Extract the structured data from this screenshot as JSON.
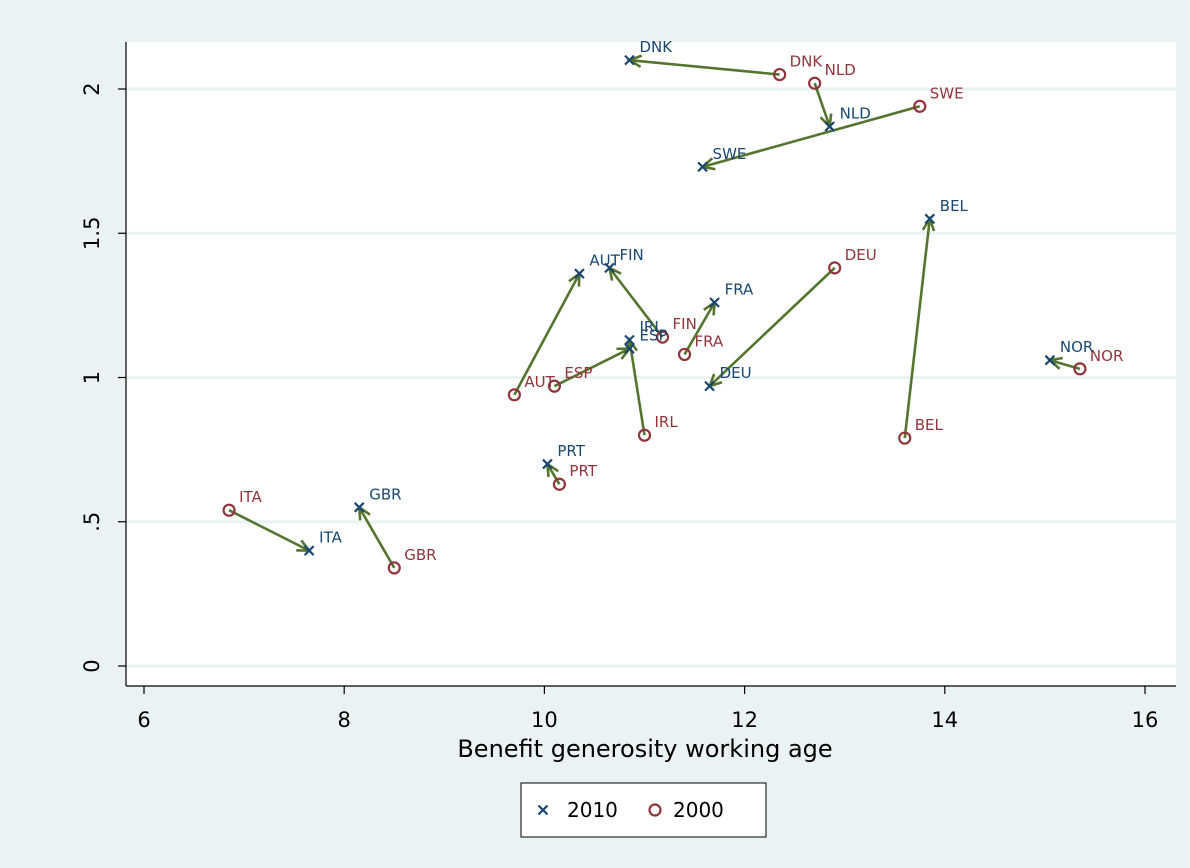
{
  "chart_data": {
    "type": "scatter",
    "title": "",
    "xlabel": "Benefit generosity working age",
    "ylabel": "",
    "xlim": [
      6,
      16
    ],
    "ylim": [
      0,
      2.15
    ],
    "xticks": [
      6,
      8,
      10,
      12,
      14,
      16
    ],
    "xtick_labels": [
      "6",
      "8",
      "10",
      "12",
      "14",
      "16"
    ],
    "yticks": [
      0,
      0.5,
      1,
      1.5,
      2
    ],
    "ytick_labels": [
      "0",
      ".5",
      "1",
      "1.5",
      "2"
    ],
    "grid": "horizontal",
    "legend_position": "bottom",
    "colors": {
      "s2010": "#1a476f",
      "s2000": "#90353b",
      "arrow": "#55752f",
      "grid": "#eaf2f3",
      "background": "#eaf2f3",
      "plot_background": "#ffffff"
    },
    "series": [
      {
        "name": "2010",
        "marker": "x",
        "points": [
          {
            "label": "DNK",
            "x": 10.85,
            "y": 2.1
          },
          {
            "label": "NLD",
            "x": 12.85,
            "y": 1.87
          },
          {
            "label": "SWE",
            "x": 11.58,
            "y": 1.73
          },
          {
            "label": "BEL",
            "x": 13.85,
            "y": 1.55
          },
          {
            "label": "AUT",
            "x": 10.35,
            "y": 1.36
          },
          {
            "label": "FIN",
            "x": 10.65,
            "y": 1.38
          },
          {
            "label": "FRA",
            "x": 11.7,
            "y": 1.26
          },
          {
            "label": "IRL",
            "x": 10.85,
            "y": 1.13
          },
          {
            "label": "ESP",
            "x": 10.85,
            "y": 1.1
          },
          {
            "label": "DEU",
            "x": 11.65,
            "y": 0.97
          },
          {
            "label": "NOR",
            "x": 15.05,
            "y": 1.06
          },
          {
            "label": "PRT",
            "x": 10.03,
            "y": 0.7
          },
          {
            "label": "GBR",
            "x": 8.15,
            "y": 0.55
          },
          {
            "label": "ITA",
            "x": 7.65,
            "y": 0.4
          }
        ]
      },
      {
        "name": "2000",
        "marker": "circle",
        "points": [
          {
            "label": "DNK",
            "x": 12.35,
            "y": 2.05
          },
          {
            "label": "NLD",
            "x": 12.7,
            "y": 2.02
          },
          {
            "label": "SWE",
            "x": 13.75,
            "y": 1.94
          },
          {
            "label": "BEL",
            "x": 13.6,
            "y": 0.79
          },
          {
            "label": "AUT",
            "x": 9.7,
            "y": 0.94
          },
          {
            "label": "FIN",
            "x": 11.18,
            "y": 1.14
          },
          {
            "label": "FRA",
            "x": 11.4,
            "y": 1.08
          },
          {
            "label": "IRL",
            "x": 11.0,
            "y": 0.8
          },
          {
            "label": "ESP",
            "x": 10.1,
            "y": 0.97
          },
          {
            "label": "DEU",
            "x": 12.9,
            "y": 1.38
          },
          {
            "label": "NOR",
            "x": 15.35,
            "y": 1.03
          },
          {
            "label": "PRT",
            "x": 10.15,
            "y": 0.63
          },
          {
            "label": "GBR",
            "x": 8.5,
            "y": 0.34
          },
          {
            "label": "ITA",
            "x": 6.85,
            "y": 0.54
          }
        ]
      }
    ],
    "arrows": "from 2000 point to 2010 point for each country"
  },
  "legend": {
    "items": [
      {
        "label": "2010",
        "marker": "x"
      },
      {
        "label": "2000",
        "marker": "circle"
      }
    ]
  }
}
